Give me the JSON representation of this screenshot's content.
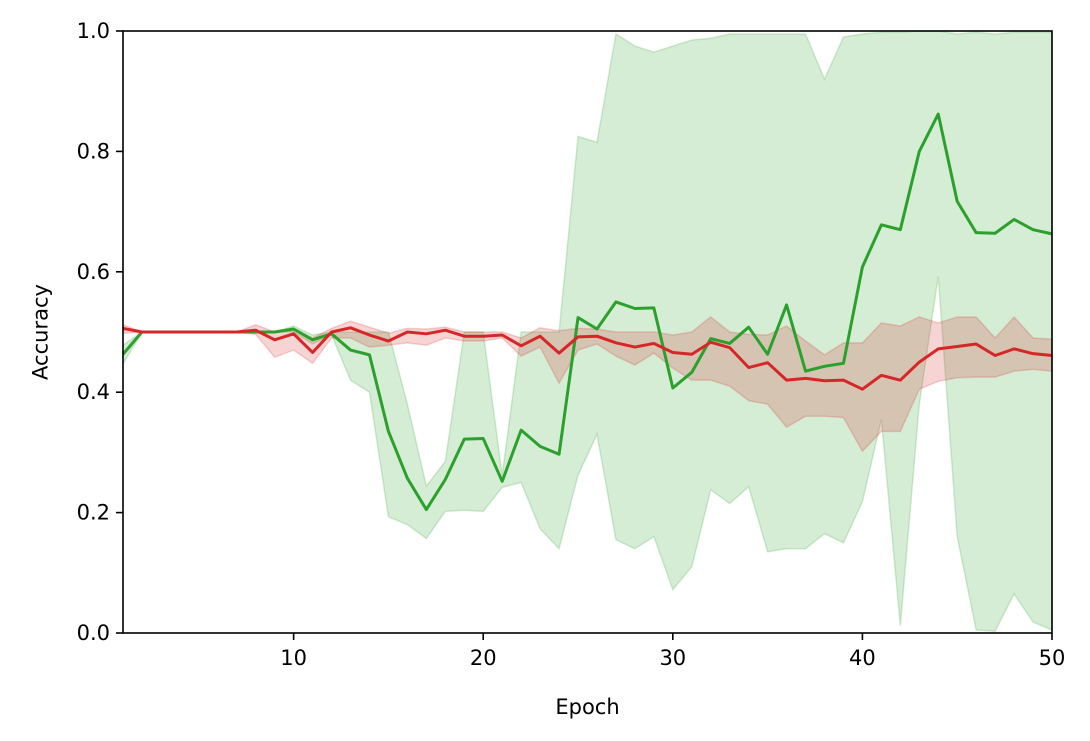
{
  "chart_data": {
    "type": "line",
    "title": "",
    "xlabel": "Epoch",
    "ylabel": "Accuracy",
    "xlim": [
      1,
      50
    ],
    "ylim": [
      0.0,
      1.0
    ],
    "xticks": [
      10,
      20,
      30,
      40,
      50
    ],
    "yticks": [
      "0.0",
      "0.2",
      "0.4",
      "0.6",
      "0.8",
      "1.0"
    ],
    "grid": false,
    "legend": "none",
    "x": [
      1,
      2,
      3,
      4,
      5,
      6,
      7,
      8,
      9,
      10,
      11,
      12,
      13,
      14,
      15,
      16,
      17,
      18,
      19,
      20,
      21,
      22,
      23,
      24,
      25,
      26,
      27,
      28,
      29,
      30,
      31,
      32,
      33,
      34,
      35,
      36,
      37,
      38,
      39,
      40,
      41,
      42,
      43,
      44,
      45,
      46,
      47,
      48,
      49,
      50
    ],
    "series": [
      {
        "color": "#2ca02c",
        "band_color": "#2ca02c",
        "values": [
          0.463,
          0.5,
          0.5,
          0.5,
          0.5,
          0.5,
          0.5,
          0.5,
          0.5,
          0.505,
          0.487,
          0.497,
          0.47,
          0.462,
          0.335,
          0.257,
          0.205,
          0.255,
          0.322,
          0.323,
          0.252,
          0.337,
          0.31,
          0.297,
          0.524,
          0.505,
          0.55,
          0.539,
          0.54,
          0.407,
          0.433,
          0.489,
          0.481,
          0.508,
          0.463,
          0.545,
          0.435,
          0.443,
          0.448,
          0.608,
          0.678,
          0.67,
          0.8,
          0.862,
          0.717,
          0.665,
          0.664,
          0.687,
          0.67,
          0.663
        ],
        "lower": [
          0.447,
          0.5,
          0.5,
          0.5,
          0.5,
          0.5,
          0.5,
          0.5,
          0.5,
          0.5,
          0.48,
          0.495,
          0.42,
          0.4,
          0.193,
          0.18,
          0.157,
          0.202,
          0.204,
          0.202,
          0.242,
          0.25,
          0.173,
          0.14,
          0.262,
          0.33,
          0.155,
          0.14,
          0.16,
          0.072,
          0.11,
          0.238,
          0.215,
          0.243,
          0.135,
          0.14,
          0.14,
          0.165,
          0.15,
          0.218,
          0.355,
          0.012,
          0.38,
          0.592,
          0.16,
          0.005,
          0.003,
          0.065,
          0.018,
          0.005
        ],
        "upper": [
          0.478,
          0.5,
          0.5,
          0.5,
          0.5,
          0.5,
          0.5,
          0.5,
          0.5,
          0.51,
          0.495,
          0.5,
          0.5,
          0.5,
          0.5,
          0.38,
          0.244,
          0.285,
          0.5,
          0.5,
          0.262,
          0.5,
          0.5,
          0.5,
          0.825,
          0.815,
          0.995,
          0.975,
          0.965,
          0.975,
          0.985,
          0.988,
          0.995,
          0.995,
          0.995,
          0.995,
          0.995,
          0.92,
          0.99,
          0.995,
          0.998,
          0.998,
          1.0,
          1.0,
          0.995,
          0.998,
          0.995,
          0.998,
          0.998,
          0.998
        ]
      },
      {
        "color": "#d62728",
        "band_color": "#d62728",
        "values": [
          0.506,
          0.5,
          0.5,
          0.5,
          0.5,
          0.5,
          0.5,
          0.503,
          0.487,
          0.497,
          0.466,
          0.5,
          0.507,
          0.495,
          0.485,
          0.5,
          0.497,
          0.503,
          0.493,
          0.493,
          0.495,
          0.477,
          0.493,
          0.465,
          0.492,
          0.493,
          0.482,
          0.475,
          0.481,
          0.466,
          0.463,
          0.483,
          0.474,
          0.441,
          0.449,
          0.42,
          0.423,
          0.419,
          0.42,
          0.405,
          0.428,
          0.42,
          0.45,
          0.472,
          0.476,
          0.48,
          0.461,
          0.472,
          0.464,
          0.461
        ],
        "lower": [
          0.498,
          0.5,
          0.5,
          0.5,
          0.5,
          0.5,
          0.5,
          0.496,
          0.458,
          0.47,
          0.448,
          0.49,
          0.49,
          0.475,
          0.478,
          0.482,
          0.478,
          0.49,
          0.485,
          0.485,
          0.49,
          0.46,
          0.475,
          0.415,
          0.47,
          0.48,
          0.46,
          0.445,
          0.465,
          0.44,
          0.42,
          0.42,
          0.41,
          0.386,
          0.38,
          0.342,
          0.36,
          0.36,
          0.358,
          0.302,
          0.335,
          0.335,
          0.405,
          0.418,
          0.424,
          0.425,
          0.425,
          0.435,
          0.438,
          0.435
        ],
        "upper": [
          0.512,
          0.5,
          0.5,
          0.5,
          0.5,
          0.5,
          0.5,
          0.512,
          0.5,
          0.505,
          0.49,
          0.506,
          0.518,
          0.508,
          0.498,
          0.506,
          0.505,
          0.508,
          0.5,
          0.5,
          0.5,
          0.49,
          0.507,
          0.502,
          0.506,
          0.505,
          0.5,
          0.5,
          0.5,
          0.495,
          0.5,
          0.525,
          0.5,
          0.496,
          0.495,
          0.51,
          0.485,
          0.462,
          0.482,
          0.482,
          0.515,
          0.51,
          0.525,
          0.515,
          0.525,
          0.525,
          0.49,
          0.525,
          0.49,
          0.488
        ]
      }
    ]
  }
}
